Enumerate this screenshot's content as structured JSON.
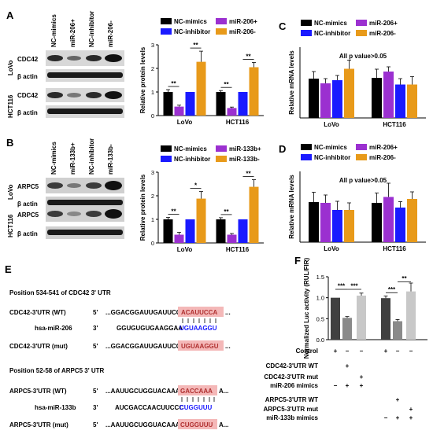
{
  "panel_labels": {
    "A": "A",
    "B": "B",
    "C": "C",
    "D": "D",
    "E": "E",
    "F": "F"
  },
  "blot_A": {
    "lanes": [
      "NC-mimics",
      "miR-206+",
      "NC-inhibitor",
      "miR-206-"
    ],
    "group1": "LoVo",
    "group2": "HCT116",
    "row1": "CDC42",
    "row2": "β actin",
    "row3": "CDC42",
    "row4": "β actin"
  },
  "blot_B": {
    "lanes": [
      "NC-mimics",
      "miR-133b+",
      "NC-inhibitor",
      "miR-133b-"
    ],
    "group1": "LoVo",
    "group2": "HCT116",
    "row1": "ARPC5",
    "row2": "β actin",
    "row3": "ARPC5",
    "row4": "β actin"
  },
  "colors": {
    "c1": "#000000",
    "c2": "#9b30d0",
    "c3": "#1a1aff",
    "c4": "#e89a1a",
    "lucDark": "#404040",
    "lucMid": "#8a8a8a",
    "lucLight": "#c8c8c8",
    "highlight": "#f4b8b8"
  },
  "chart_data": [
    {
      "type": "bar",
      "panel": "A-right",
      "ylabel": "Relative protein levels",
      "ylim": [
        0,
        3
      ],
      "yticks": [
        "0",
        "1",
        "2",
        "3"
      ],
      "categories": [
        "LoVo",
        "HCT116"
      ],
      "series": [
        {
          "name": "NC-mimics",
          "values": [
            1.0,
            1.0
          ]
        },
        {
          "name": "miR-206+",
          "values": [
            0.38,
            0.32
          ]
        },
        {
          "name": "NC-inhibitor",
          "values": [
            1.0,
            1.0
          ]
        },
        {
          "name": "miR-206-",
          "values": [
            2.28,
            2.05
          ]
        }
      ],
      "significance": [
        "**",
        "**",
        "**",
        "**"
      ],
      "legend": "top"
    },
    {
      "type": "bar",
      "panel": "B-right",
      "ylabel": "Relative protein levels",
      "ylim": [
        0,
        3
      ],
      "yticks": [
        "0",
        "1",
        "2",
        "3"
      ],
      "categories": [
        "LoVo",
        "HCT116"
      ],
      "series": [
        {
          "name": "NC-mimics",
          "values": [
            1.0,
            1.0
          ]
        },
        {
          "name": "miR-133b+",
          "values": [
            0.35,
            0.35
          ]
        },
        {
          "name": "NC-inhibitor",
          "values": [
            1.0,
            1.0
          ]
        },
        {
          "name": "miR-133b-",
          "values": [
            1.88,
            2.38
          ]
        }
      ],
      "significance": [
        "**",
        "*",
        "**",
        "**"
      ],
      "legend": "top"
    },
    {
      "type": "bar",
      "panel": "C",
      "ylabel": "Relative mRNA levels",
      "ylim": [
        0,
        1.8
      ],
      "categories": [
        "LoVo",
        "HCT116"
      ],
      "annotation": "All p value>0.05",
      "series": [
        {
          "name": "NC-mimics",
          "values": [
            1.0,
            1.02
          ]
        },
        {
          "name": "miR-206+",
          "values": [
            0.88,
            1.18
          ]
        },
        {
          "name": "NC-inhibitor",
          "values": [
            0.96,
            0.85
          ]
        },
        {
          "name": "miR-206-",
          "values": [
            1.25,
            0.85
          ]
        }
      ],
      "legend": "top"
    },
    {
      "type": "bar",
      "panel": "D",
      "ylabel": "Relative mRNA levels",
      "ylim": [
        0,
        1.8
      ],
      "categories": [
        "LoVo",
        "HCT116"
      ],
      "annotation": "All p value>0.05",
      "series": [
        {
          "name": "NC-mimics",
          "values": [
            1.02,
            1.0
          ]
        },
        {
          "name": "miR-206+",
          "values": [
            1.0,
            1.15
          ]
        },
        {
          "name": "NC-inhibitor",
          "values": [
            0.82,
            0.88
          ]
        },
        {
          "name": "miR-206-",
          "values": [
            0.82,
            1.1
          ]
        }
      ],
      "legend": "top"
    },
    {
      "type": "bar",
      "panel": "F",
      "ylabel": "Normalized Luc activity (RUL/FIR)",
      "ylim": [
        0,
        1.5
      ],
      "yticks": [
        "0.0",
        "0.5",
        "1.0",
        "1.5"
      ],
      "values": [
        1.0,
        0.52,
        1.05,
        0.99,
        0.44,
        1.15
      ],
      "significance": [
        "***",
        "***",
        "**",
        "***"
      ]
    }
  ],
  "chart_meta": [
    {
      "xlabels": [
        "LoVo",
        "HCT116"
      ]
    },
    {
      "xlabels": [
        "LoVo",
        "HCT116"
      ]
    },
    {
      "xlabels": [
        "LoVo",
        "HCT116"
      ]
    },
    {
      "xlabels": [
        "LoVo",
        "HCT116"
      ]
    }
  ],
  "panel_E": {
    "title1": "Position 534-541 of CDC42 3' UTR",
    "title2": "Position 52-58 of ARPC5 3' UTR",
    "r1_label": "CDC42-3'UTR (WT)",
    "r1_five": "5'",
    "r1_seq": "...GGACGGAUUGAUUCC",
    "r1_hl": "ACAUUCCA",
    "r1_end": "...",
    "r2_label": "hsa-miR-206",
    "r2_three": "3'",
    "r2_seq": "GGUGUGUGAAGGAA",
    "r2_blue": "UGUAAGGU",
    "r3_label": "CDC42-3'UTR (mut)",
    "r3_five": "5'",
    "r3_seq": "...GGACGGAUUGAUUCC",
    "r3_hl": "UGUAAGGU",
    "r3_end": "...",
    "r4_label": "ARPC5-3'UTR (WT)",
    "r4_five": "5'",
    "r4_seq": "...AAUUGCUGGUACAAA",
    "r4_hl": "GACCAAA",
    "r4_end": "A...",
    "r5_label": "hsa-miR-133b",
    "r5_three": "3'",
    "r5_seq": "AUCGACCAACUUCCC",
    "r5_blue": "CUGGUUU",
    "r6_label": "ARPC5-3'UTR (mut)",
    "r6_five": "5'",
    "r6_seq": "...AAUUGCUGGUACAAA",
    "r6_hl": "CUGGUUU",
    "r6_end": "A..."
  },
  "panel_F_table": {
    "rows": [
      {
        "label": "Control",
        "marks": [
          "+",
          "−",
          "−",
          "+",
          "−",
          "−"
        ]
      },
      {
        "label": "CDC42-3'UTR WT",
        "marks": [
          "",
          "+",
          "",
          "",
          "",
          ""
        ]
      },
      {
        "label": "CDC42-3'UTR mut",
        "marks": [
          "",
          "",
          "+",
          "",
          "",
          ""
        ]
      },
      {
        "label": "miR-206 mimics",
        "marks": [
          "−",
          "+",
          "+",
          "",
          "",
          ""
        ]
      },
      {
        "label": "ARPC5-3'UTR WT",
        "marks": [
          "",
          "",
          "",
          "",
          "+",
          ""
        ]
      },
      {
        "label": "ARPC5-3'UTR mut",
        "marks": [
          "",
          "",
          "",
          "",
          "",
          "+"
        ]
      },
      {
        "label": "miR-133b mimics",
        "marks": [
          "",
          "",
          "",
          "−",
          "+",
          "+"
        ]
      }
    ]
  }
}
